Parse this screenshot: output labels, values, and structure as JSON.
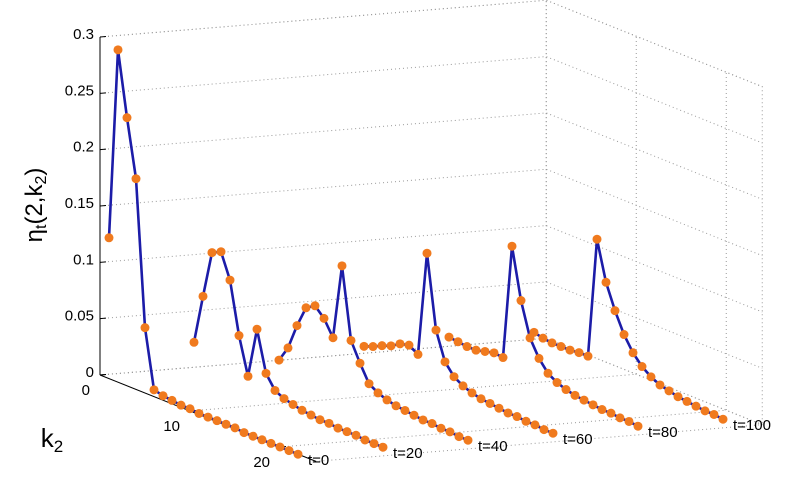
{
  "chart_data": {
    "type": "line3d",
    "zlabel_parts": [
      "η",
      "t",
      "(2,k",
      "2",
      ")"
    ],
    "klabel_parts": [
      "k",
      "2"
    ],
    "k": [
      1,
      2,
      3,
      4,
      5,
      6,
      7,
      8,
      9,
      10,
      11,
      12,
      13,
      14,
      15,
      16,
      17,
      18,
      19,
      20,
      21,
      22
    ],
    "series": [
      {
        "name": "t=0",
        "t": 0,
        "values": [
          0.125,
          0.295,
          0.238,
          0.187,
          0.058,
          0.006,
          0.004,
          0.003,
          0.002,
          0.002,
          0.001,
          0.001,
          0.001,
          0.001,
          0.001,
          0,
          0,
          0,
          0,
          0,
          0,
          0
        ]
      },
      {
        "name": "t=20",
        "t": 20,
        "values": [
          0.026,
          0.07,
          0.112,
          0.116,
          0.094,
          0.048,
          0.015,
          0.06,
          0.024,
          0.012,
          0.008,
          0.006,
          0.004,
          0.003,
          0.002,
          0.002,
          0.001,
          0.001,
          0.001,
          0,
          0,
          0
        ]
      },
      {
        "name": "t=40",
        "t": 40,
        "values": [
          0.004,
          0.018,
          0.041,
          0.06,
          0.065,
          0.057,
          0.043,
          0.11,
          0.047,
          0.03,
          0.015,
          0.01,
          0.007,
          0.005,
          0.004,
          0.003,
          0.002,
          0.002,
          0.001,
          0.001,
          0,
          0
        ]
      },
      {
        "name": "t=60",
        "t": 60,
        "values": [
          0.01,
          0.013,
          0.017,
          0.02,
          0.025,
          0.027,
          0.022,
          0.115,
          0.05,
          0.025,
          0.015,
          0.01,
          0.007,
          0.005,
          0.004,
          0.003,
          0.002,
          0.002,
          0.001,
          0.001,
          0,
          0
        ]
      },
      {
        "name": "t=80",
        "t": 80,
        "values": [
          0.012,
          0.011,
          0.01,
          0.01,
          0.012,
          0.014,
          0.013,
          0.115,
          0.07,
          0.04,
          0.025,
          0.015,
          0.01,
          0.007,
          0.005,
          0.004,
          0.003,
          0.002,
          0.002,
          0.001,
          0.001,
          0
        ]
      },
      {
        "name": "t=100",
        "t": 100,
        "values": [
          0.01,
          0.008,
          0.007,
          0.007,
          0.007,
          0.008,
          0.008,
          0.115,
          0.08,
          0.058,
          0.04,
          0.027,
          0.018,
          0.012,
          0.008,
          0.006,
          0.004,
          0.003,
          0.002,
          0.001,
          0.001,
          0
        ]
      }
    ],
    "line_color": "#1c1ca8",
    "marker_color": "#f07a1e",
    "zlim": [
      0,
      0.3
    ],
    "zticks": [
      0,
      0.05,
      0.1,
      0.15,
      0.2,
      0.25,
      0.3
    ],
    "klim": [
      0,
      24
    ],
    "kticks": [
      0,
      10,
      20
    ],
    "tlim": [
      0,
      105
    ],
    "grid": true
  }
}
